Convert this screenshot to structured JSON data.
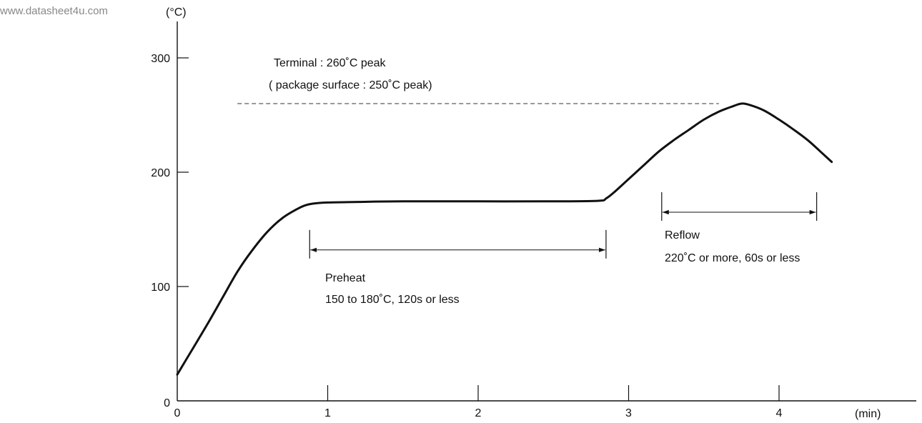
{
  "watermark": "www.datasheet4u.com",
  "chart_data": {
    "type": "line",
    "title": "",
    "xlabel": "(min)",
    "ylabel": "(°C)",
    "xlim": [
      0,
      4.35
    ],
    "ylim": [
      0,
      300
    ],
    "x_ticks": [
      {
        "value": 0,
        "label": "0"
      },
      {
        "value": 1,
        "label": "1"
      },
      {
        "value": 2,
        "label": "2"
      },
      {
        "value": 3,
        "label": "3"
      },
      {
        "value": 4,
        "label": "4"
      }
    ],
    "y_ticks": [
      {
        "value": 0,
        "label": "0"
      },
      {
        "value": 100,
        "label": "100"
      },
      {
        "value": 200,
        "label": "200"
      },
      {
        "value": 300,
        "label": "300"
      }
    ],
    "grid": false,
    "series": [
      {
        "x": [
          0,
          0.1,
          0.2,
          0.3,
          0.4,
          0.5,
          0.6,
          0.7,
          0.8,
          0.85,
          0.9,
          1.0,
          1.2,
          1.5,
          2.0,
          2.5,
          2.8,
          2.85,
          2.9,
          3.0,
          3.1,
          3.2,
          3.3,
          3.4,
          3.5,
          3.6,
          3.7,
          3.75,
          3.8,
          3.9,
          4.0,
          4.1,
          4.2,
          4.3,
          4.35
        ],
        "y": [
          23,
          45,
          67,
          90,
          113,
          132,
          148,
          160,
          168,
          171,
          172.5,
          173.5,
          174,
          174.5,
          174.5,
          174.5,
          175,
          177,
          182,
          194,
          206,
          218,
          228,
          237,
          246,
          253,
          258,
          260,
          259,
          254,
          246,
          237,
          227,
          215,
          209
        ]
      }
    ],
    "reference_line": {
      "y": 260,
      "x_start": 0.4,
      "x_end": 3.6,
      "style": "dashed"
    },
    "ranges": [
      {
        "name": "preheat",
        "x_start": 0.88,
        "x_end": 2.85,
        "y": 132
      },
      {
        "name": "reflow",
        "x_start": 3.22,
        "x_end": 4.25,
        "y": 165
      }
    ],
    "annotations": {
      "peak_line1": "Terminal : 260˚C peak",
      "peak_line2": "( package surface : 250˚C peak)",
      "preheat_title": "Preheat",
      "preheat_detail": "150 to 180˚C, 120s or less",
      "reflow_title": "Reflow",
      "reflow_detail": "220˚C or more, 60s or less"
    }
  }
}
